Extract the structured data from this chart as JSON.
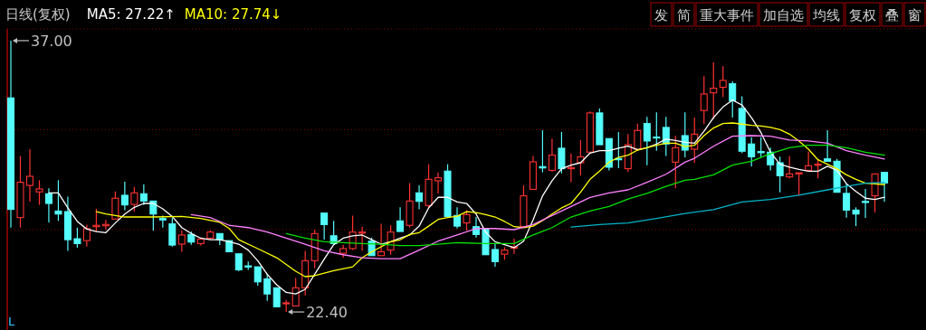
{
  "chart_data": {
    "type": "candlestick",
    "title": "日线(复权)",
    "categories": [
      null,
      null,
      null,
      null,
      null,
      null,
      null,
      null,
      null,
      null,
      null,
      null,
      null,
      null,
      null,
      null,
      null,
      null,
      null,
      null,
      null,
      null,
      null,
      null,
      null,
      null,
      null,
      null,
      null,
      null,
      null,
      null,
      null,
      null,
      null,
      null,
      null,
      null,
      null,
      null,
      null,
      null,
      null,
      null,
      null,
      null,
      null,
      null,
      null,
      null,
      null,
      null,
      null,
      null,
      null,
      null,
      null,
      null,
      null,
      null,
      null,
      null,
      null,
      null,
      null,
      null,
      null,
      null,
      null,
      null,
      null,
      null,
      null,
      null,
      null,
      null,
      null,
      null,
      null,
      null,
      null,
      null,
      null,
      null,
      null,
      null,
      null,
      null,
      null,
      null,
      null,
      null,
      null
    ],
    "ohlc": [
      [
        33.92,
        37.0,
        26.94,
        27.92
      ],
      [
        27.48,
        30.79,
        26.94,
        29.38
      ],
      [
        29.21,
        31.16,
        28.32,
        29.7
      ],
      [
        28.86,
        29.49,
        28.16,
        29.02
      ],
      [
        28.76,
        29.05,
        27.22,
        28.24
      ],
      [
        27.83,
        29.49,
        27.3,
        27.67
      ],
      [
        27.8,
        28.61,
        25.69,
        26.29
      ],
      [
        26.34,
        26.94,
        25.86,
        26.08
      ],
      [
        26.24,
        27.1,
        25.92,
        26.89
      ],
      [
        26.99,
        27.95,
        26.7,
        27.06
      ],
      [
        27.04,
        27.35,
        26.83,
        27.11
      ],
      [
        27.4,
        28.89,
        27.35,
        28.52
      ],
      [
        28.68,
        29.41,
        27.88,
        28.16
      ],
      [
        28.19,
        29.13,
        27.8,
        28.81
      ],
      [
        28.76,
        29.26,
        28.16,
        28.37
      ],
      [
        28.37,
        28.37,
        26.78,
        27.67
      ],
      [
        27.43,
        27.59,
        26.94,
        27.35
      ],
      [
        27.14,
        27.46,
        25.92,
        26.0
      ],
      [
        26.05,
        26.78,
        25.64,
        26.54
      ],
      [
        26.57,
        26.73,
        26.02,
        26.16
      ],
      [
        26.08,
        26.4,
        25.98,
        26.32
      ],
      [
        26.37,
        26.78,
        26.29,
        26.7
      ],
      [
        26.62,
        26.62,
        26.0,
        26.29
      ],
      [
        26.24,
        26.29,
        25.6,
        25.64
      ],
      [
        25.53,
        25.53,
        24.59,
        24.67
      ],
      [
        24.88,
        25.11,
        24.67,
        24.82
      ],
      [
        24.83,
        24.83,
        23.81,
        24.02
      ],
      [
        24.18,
        24.46,
        23.0,
        23.37
      ],
      [
        23.7,
        23.7,
        22.61,
        22.68
      ],
      [
        22.84,
        23.05,
        22.4,
        22.89
      ],
      [
        22.72,
        24.23,
        22.68,
        23.7
      ],
      [
        23.7,
        25.69,
        23.29,
        25.16
      ],
      [
        25.16,
        26.83,
        24.75,
        26.62
      ],
      [
        27.72,
        27.72,
        26.29,
        27.1
      ],
      [
        26.5,
        27.3,
        26.05,
        26.08
      ],
      [
        25.56,
        26.02,
        25.32,
        25.81
      ],
      [
        25.81,
        27.59,
        25.73,
        26.7
      ],
      [
        26.64,
        26.99,
        25.69,
        26.7
      ],
      [
        26.21,
        26.4,
        25.4,
        25.43
      ],
      [
        25.43,
        27.15,
        25.4,
        25.64
      ],
      [
        25.73,
        27.06,
        25.48,
        26.7
      ],
      [
        27.3,
        28.03,
        26.73,
        26.73
      ],
      [
        27.06,
        29.33,
        26.94,
        28.37
      ],
      [
        28.81,
        29.21,
        27.92,
        28.35
      ],
      [
        28.13,
        30.35,
        28.03,
        29.54
      ],
      [
        29.46,
        29.91,
        28.78,
        29.62
      ],
      [
        29.98,
        30.35,
        27.54,
        27.54
      ],
      [
        27.59,
        28.03,
        26.89,
        27.02
      ],
      [
        27.19,
        27.87,
        26.78,
        27.64
      ],
      [
        26.99,
        27.51,
        26.41,
        26.57
      ],
      [
        26.89,
        26.89,
        25.48,
        25.48
      ],
      [
        25.76,
        26.08,
        24.83,
        25.11
      ],
      [
        25.51,
        25.89,
        25.21,
        25.73
      ],
      [
        25.83,
        26.34,
        25.53,
        25.89
      ],
      [
        26.99,
        29.21,
        26.94,
        28.65
      ],
      [
        29.0,
        30.79,
        28.97,
        30.48
      ],
      [
        30.22,
        32.18,
        29.91,
        30.15
      ],
      [
        30.02,
        31.73,
        29.94,
        30.84
      ],
      [
        31.21,
        32.09,
        29.86,
        30.11
      ],
      [
        30.11,
        30.92,
        29.38,
        30.17
      ],
      [
        30.43,
        31.65,
        29.75,
        30.75
      ],
      [
        31.0,
        33.19,
        30.95,
        33.11
      ],
      [
        33.11,
        33.35,
        31.4,
        31.4
      ],
      [
        31.73,
        31.73,
        30.02,
        30.19
      ],
      [
        30.66,
        32.09,
        30.14,
        30.59
      ],
      [
        30.11,
        31.97,
        29.94,
        31.4
      ],
      [
        31.16,
        32.54,
        31.08,
        32.17
      ],
      [
        32.54,
        32.9,
        30.3,
        31.6
      ],
      [
        31.81,
        33.14,
        31.08,
        31.76
      ],
      [
        32.33,
        32.9,
        30.79,
        31.44
      ],
      [
        30.46,
        31.89,
        29.05,
        31.24
      ],
      [
        31.89,
        33.14,
        30.72,
        31.11
      ],
      [
        31.16,
        32.86,
        30.43,
        31.97
      ],
      [
        33.24,
        35.09,
        32.51,
        34.13
      ],
      [
        34.19,
        35.83,
        32.78,
        34.44
      ],
      [
        34.49,
        35.62,
        33.97,
        34.86
      ],
      [
        34.68,
        34.81,
        32.86,
        33.76
      ],
      [
        33.35,
        34.0,
        30.95,
        31.05
      ],
      [
        31.44,
        31.81,
        30.24,
        30.75
      ],
      [
        31.03,
        31.81,
        30.72,
        30.97
      ],
      [
        31.0,
        31.24,
        30.02,
        30.32
      ],
      [
        30.43,
        30.76,
        28.84,
        29.73
      ],
      [
        29.67,
        30.79,
        29.59,
        29.83
      ],
      [
        29.83,
        29.89,
        28.68,
        29.89
      ],
      [
        30.02,
        31.03,
        29.97,
        30.27
      ],
      [
        30.3,
        30.62,
        29.59,
        30.35
      ],
      [
        30.64,
        32.18,
        30.48,
        30.51
      ],
      [
        30.51,
        30.64,
        28.81,
        28.84
      ],
      [
        28.78,
        29.3,
        27.48,
        27.88
      ],
      [
        27.88,
        28.03,
        27.02,
        27.67
      ],
      [
        28.35,
        29.02,
        27.46,
        28.29
      ],
      [
        28.65,
        29.83,
        27.75,
        29.83
      ],
      [
        29.91,
        29.91,
        28.32,
        29.34
      ]
    ],
    "colors": [
      "#54fcfc",
      "#ff3232",
      "#ff3232",
      "#ff3232",
      "#54fcfc",
      "#54fcfc",
      "#54fcfc",
      "#54fcfc",
      "#ff3232",
      "#ff3232",
      "#ff3232",
      "#ff3232",
      "#54fcfc",
      "#ff3232",
      "#54fcfc",
      "#54fcfc",
      "#54fcfc",
      "#54fcfc",
      "#ff3232",
      "#54fcfc",
      "#ff3232",
      "#ff3232",
      "#54fcfc",
      "#54fcfc",
      "#54fcfc",
      "#54fcfc",
      "#54fcfc",
      "#54fcfc",
      "#54fcfc",
      "#ff3232",
      "#ff3232",
      "#ff3232",
      "#ff3232",
      "#54fcfc",
      "#54fcfc",
      "#ff3232",
      "#ff3232",
      "#ff3232",
      "#54fcfc",
      "#ff3232",
      "#ff3232",
      "#54fcfc",
      "#ff3232",
      "#54fcfc",
      "#ff3232",
      "#ff3232",
      "#54fcfc",
      "#54fcfc",
      "#ff3232",
      "#54fcfc",
      "#54fcfc",
      "#54fcfc",
      "#ff3232",
      "#ff3232",
      "#ff3232",
      "#ff3232",
      "#54fcfc",
      "#ff3232",
      "#54fcfc",
      "#ff3232",
      "#ff3232",
      "#ff3232",
      "#54fcfc",
      "#54fcfc",
      "#54fcfc",
      "#ff3232",
      "#ff3232",
      "#54fcfc",
      "#54fcfc",
      "#54fcfc",
      "#ff3232",
      "#54fcfc",
      "#ff3232",
      "#ff3232",
      "#ff3232",
      "#ff3232",
      "#54fcfc",
      "#54fcfc",
      "#54fcfc",
      "#54fcfc",
      "#54fcfc",
      "#54fcfc",
      "#ff3232",
      "#ff3232",
      "#ff3232",
      "#ff3232",
      "#54fcfc",
      "#54fcfc",
      "#54fcfc",
      "#54fcfc",
      "#54fcfc",
      "#ff3232",
      "#54fcfc"
    ],
    "series": [
      {
        "type": "line",
        "name": "MA5: 27.22↑",
        "color": "#ffffff",
        "values": [
          null,
          null,
          null,
          null,
          28.81,
          28.81,
          28.0,
          27.27,
          26.86,
          26.73,
          26.67,
          27.19,
          27.67,
          28.03,
          28.24,
          28.24,
          27.95,
          27.54,
          26.94,
          26.62,
          26.37,
          26.29,
          26.29,
          26.18,
          26.05,
          25.73,
          25.16,
          24.43,
          23.86,
          23.45,
          23.37,
          23.62,
          24.43,
          25.24,
          26.02,
          26.37,
          26.5,
          26.54,
          26.29,
          26.05,
          26.18,
          26.37,
          26.54,
          27.02,
          28.0,
          28.57,
          28.57,
          28.32,
          28.24,
          27.67,
          26.7,
          26.18,
          26.02,
          25.86,
          26.21,
          27.35,
          28.65,
          29.46,
          30.11,
          30.3,
          30.43,
          30.95,
          31.08,
          31.08,
          31.21,
          31.32,
          31.13,
          31.24,
          31.44,
          31.7,
          31.63,
          31.53,
          31.48,
          32.13,
          32.86,
          33.43,
          33.8,
          33.54,
          32.86,
          32.05,
          31.0,
          30.35,
          30.19,
          30.07,
          29.97,
          29.97,
          30.24,
          30.02,
          29.3,
          28.89,
          28.52,
          28.45,
          28.57
        ]
      },
      {
        "type": "line",
        "name": "MA10: 27.74↓",
        "color": "#ffff00",
        "values": [
          null,
          null,
          null,
          null,
          null,
          null,
          null,
          null,
          null,
          27.8,
          27.67,
          null,
          27.51,
          null,
          null,
          27.51,
          null,
          null,
          27.54,
          null,
          27.43,
          null,
          27.22,
          26.89,
          26.29,
          null,
          25.81,
          null,
          25.32,
          null,
          24.59,
          24.3,
          24.35,
          null,
          24.62,
          null,
          24.83,
          25.32,
          25.64,
          null,
          26.18,
          26.28,
          26.57,
          26.67,
          27.02,
          27.38,
          27.48,
          27.55,
          27.8,
          27.75,
          27.64,
          27.51,
          27.27,
          26.99,
          26.94,
          27.02,
          27.32,
          27.67,
          28.0,
          28.24,
          28.84,
          29.54,
          29.98,
          30.46,
          30.72,
          30.84,
          31.11,
          31.24,
          31.37,
          31.48,
          31.48,
          31.3,
          31.37,
          31.89,
          32.3,
          32.54,
          32.57,
          32.51,
          32.44,
          32.41,
          32.33,
          32.21,
          31.97,
          31.6,
          31.16,
          30.59,
          30.35,
          30.11,
          29.78,
          29.54,
          29.33,
          29.29,
          29.25
        ]
      },
      {
        "type": "line",
        "color": "#ff80ff",
        "values": [
          null,
          null,
          null,
          null,
          null,
          null,
          null,
          null,
          null,
          null,
          null,
          null,
          null,
          null,
          null,
          null,
          null,
          null,
          null,
          27.64,
          null,
          27.48,
          null,
          27.06,
          null,
          26.94,
          null,
          26.7,
          null,
          26.37,
          null,
          26.05,
          null,
          25.69,
          null,
          25.48,
          null,
          25.32,
          null,
          25.27,
          null,
          25.27,
          null,
          25.73,
          null,
          26.21,
          null,
          26.54,
          null,
          26.89,
          null,
          26.89,
          null,
          26.83,
          null,
          27.1,
          null,
          27.59,
          null,
          28.08,
          null,
          28.56,
          null,
          28.81,
          null,
          28.97,
          null,
          29.38,
          null,
          29.81,
          null,
          30.46,
          30.67,
          null,
          31.32,
          null,
          31.86,
          null,
          31.89,
          null,
          31.86,
          null,
          31.65,
          null,
          31.6,
          null,
          31.48,
          null,
          31.08,
          null,
          30.84,
          null,
          30.63
        ]
      },
      {
        "type": "line",
        "color": "#00e000",
        "values": [
          null,
          null,
          null,
          null,
          null,
          null,
          null,
          null,
          null,
          null,
          null,
          null,
          null,
          null,
          null,
          null,
          null,
          null,
          null,
          null,
          null,
          null,
          null,
          null,
          null,
          null,
          null,
          null,
          null,
          26.62,
          null,
          26.37,
          null,
          26.18,
          null,
          26.13,
          null,
          26.08,
          null,
          26.05,
          null,
          25.97,
          null,
          25.97,
          null,
          26.05,
          null,
          26.13,
          null,
          null,
          26.08,
          null,
          null,
          26.08,
          null,
          26.54,
          null,
          26.94,
          null,
          27.51,
          null,
          27.83,
          null,
          28.08,
          null,
          28.48,
          null,
          28.78,
          null,
          29.16,
          null,
          29.49,
          29.54,
          null,
          29.78,
          null,
          30.3,
          null,
          30.51,
          null,
          30.92,
          null,
          31.24,
          null,
          31.37,
          null,
          31.37,
          null,
          31.24,
          null,
          31.0,
          null,
          30.84
        ]
      },
      {
        "type": "line",
        "color": "#00b4c8",
        "values": [
          null,
          null,
          null,
          null,
          null,
          null,
          null,
          null,
          null,
          null,
          null,
          null,
          null,
          null,
          null,
          null,
          null,
          null,
          null,
          null,
          null,
          null,
          null,
          null,
          null,
          null,
          null,
          null,
          null,
          null,
          null,
          null,
          null,
          null,
          null,
          null,
          null,
          null,
          null,
          null,
          null,
          null,
          null,
          null,
          null,
          null,
          null,
          null,
          null,
          null,
          null,
          null,
          null,
          null,
          null,
          null,
          null,
          null,
          null,
          26.97,
          null,
          null,
          27.1,
          null,
          null,
          27.19,
          null,
          null,
          27.43,
          null,
          null,
          27.7,
          null,
          null,
          27.91,
          null,
          null,
          28.32,
          null,
          null,
          28.45,
          null,
          null,
          28.68,
          null,
          null,
          28.97,
          null,
          29.16,
          null,
          29.33,
          null,
          29.38
        ]
      }
    ],
    "ylim": [
      21.43,
      37.63
    ],
    "yticks": [
      {
        "value": 32.21,
        "label": null
      },
      {
        "value": 26.83,
        "label": null
      }
    ],
    "grid": "y",
    "legend": "top left",
    "annotations": [
      "37.00",
      "22.40",
      "L",
      "发",
      "简",
      "重大事件",
      "加自选",
      "均线",
      "复权",
      "叠",
      "窗"
    ]
  }
}
